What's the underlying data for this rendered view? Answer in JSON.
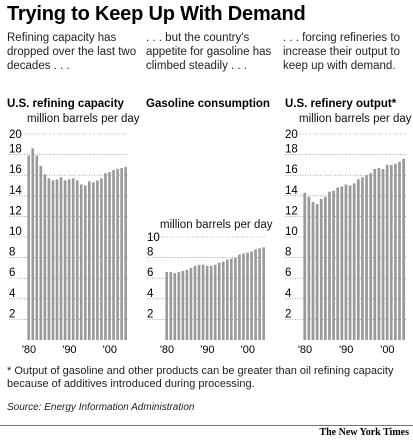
{
  "title": "Trying to Keep Up With Demand",
  "intros": [
    "Refining capacity has dropped over the last two decades . . .",
    ". . . but the country's appetite for gasoline has climbed steadily . . .",
    ". . . forcing refineries to increase their output to keep up with demand."
  ],
  "footnote": "* Output of gasoline and other products can be greater than oil refining capacity\n   because of additives introduced during processing.",
  "source": "Source: Energy Information Administration",
  "credit": "The New York Times",
  "colors": {
    "bar": "#9a9a9a",
    "grid": "#777777",
    "text": "#000000"
  },
  "chart_data": [
    {
      "type": "bar",
      "title": "U.S. refining capacity",
      "unit_label": "million barrels per day",
      "ylim": [
        0,
        20
      ],
      "yticks": [
        2,
        4,
        6,
        8,
        10,
        12,
        14,
        16,
        18,
        20
      ],
      "xtick_labels": [
        "'80",
        "'90",
        "'00"
      ],
      "grid": true,
      "x": [
        1980,
        1981,
        1982,
        1983,
        1984,
        1985,
        1986,
        1987,
        1988,
        1989,
        1990,
        1991,
        1992,
        1993,
        1994,
        1995,
        1996,
        1997,
        1998,
        1999,
        2000,
        2001,
        2002,
        2003,
        2004
      ],
      "values": [
        17.9,
        18.6,
        17.9,
        16.9,
        16.1,
        15.7,
        15.5,
        15.6,
        15.8,
        15.5,
        15.6,
        15.7,
        15.5,
        15.1,
        15.0,
        15.4,
        15.3,
        15.5,
        15.7,
        16.2,
        16.3,
        16.5,
        16.6,
        16.7,
        16.8
      ]
    },
    {
      "type": "bar",
      "title": "Gasoline consumption",
      "unit_label": "million barrels per day",
      "ylim": [
        0,
        10
      ],
      "yticks": [
        2,
        4,
        6,
        8,
        10
      ],
      "xtick_labels": [
        "'80",
        "'90",
        "'00"
      ],
      "grid": true,
      "x": [
        1980,
        1981,
        1982,
        1983,
        1984,
        1985,
        1986,
        1987,
        1988,
        1989,
        1990,
        1991,
        1992,
        1993,
        1994,
        1995,
        1996,
        1997,
        1998,
        1999,
        2000,
        2001,
        2002,
        2003,
        2004
      ],
      "values": [
        6.6,
        6.6,
        6.5,
        6.6,
        6.7,
        6.8,
        7.0,
        7.2,
        7.3,
        7.3,
        7.2,
        7.2,
        7.3,
        7.5,
        7.6,
        7.8,
        7.9,
        8.0,
        8.3,
        8.4,
        8.5,
        8.6,
        8.8,
        8.9,
        9.0
      ]
    },
    {
      "type": "bar",
      "title": "U.S. refinery output*",
      "unit_label": "million barrels per day",
      "ylim": [
        0,
        20
      ],
      "yticks": [
        2,
        4,
        6,
        8,
        10,
        12,
        14,
        16,
        18,
        20
      ],
      "xtick_labels": [
        "'80",
        "'90",
        "'00"
      ],
      "grid": true,
      "x": [
        1980,
        1981,
        1982,
        1983,
        1984,
        1985,
        1986,
        1987,
        1988,
        1989,
        1990,
        1991,
        1992,
        1993,
        1994,
        1995,
        1996,
        1997,
        1998,
        1999,
        2000,
        2001,
        2002,
        2003,
        2004
      ],
      "values": [
        14.3,
        13.9,
        13.4,
        13.2,
        13.7,
        13.9,
        14.4,
        14.5,
        14.8,
        14.9,
        15.1,
        15.0,
        15.2,
        15.6,
        15.8,
        16.0,
        16.2,
        16.6,
        16.7,
        16.6,
        17.0,
        17.0,
        17.1,
        17.3,
        17.6
      ]
    }
  ]
}
